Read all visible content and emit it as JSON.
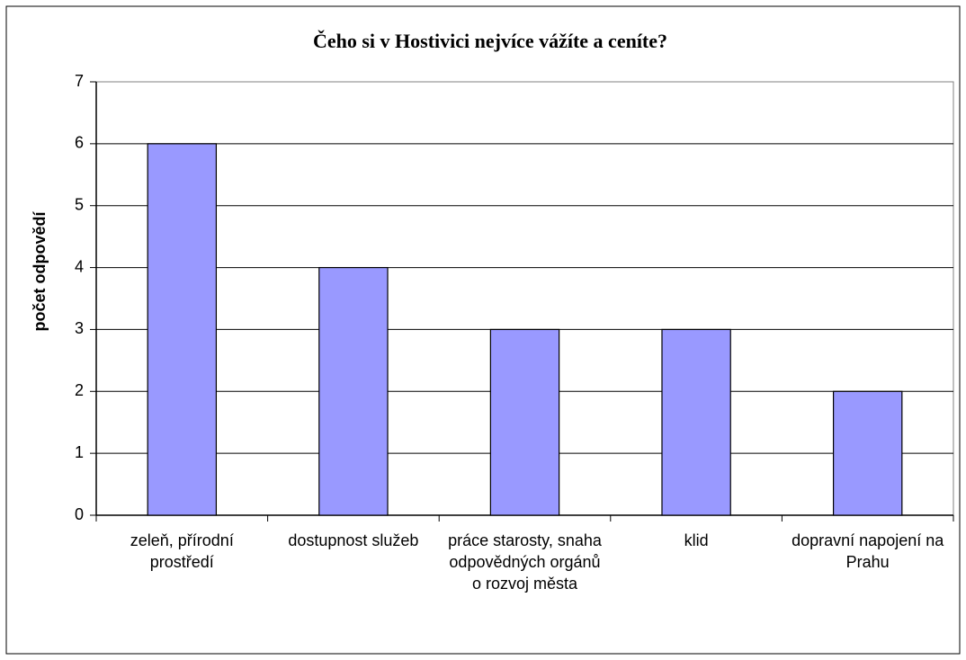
{
  "chart_data": {
    "type": "bar",
    "title": "Čeho si v Hostivici nejvíce vážíte a ceníte?",
    "y_label": "počet odpovědí",
    "categories": [
      "zeleň, přírodní prostředí",
      "dostupnost služeb",
      "práce starosty, snaha odpovědných orgánů o rozvoj města",
      "klid",
      "dopravní napojení na Prahu"
    ],
    "values": [
      6,
      4,
      3,
      3,
      2
    ],
    "color": "#9999ff",
    "ylim": [
      0,
      7
    ],
    "yticks": [
      0,
      1,
      2,
      3,
      4,
      5,
      6,
      7
    ],
    "grid": true
  }
}
